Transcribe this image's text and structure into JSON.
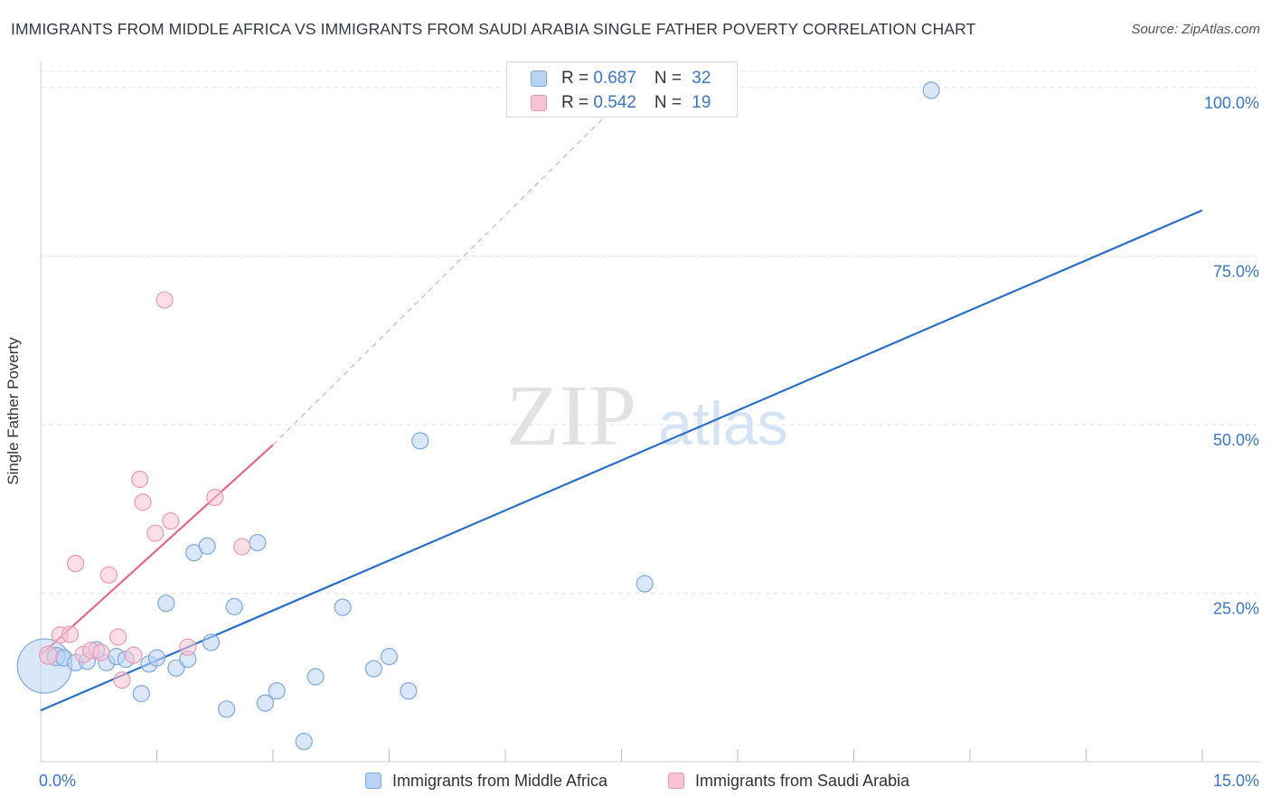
{
  "title": "IMMIGRANTS FROM MIDDLE AFRICA VS IMMIGRANTS FROM SAUDI ARABIA SINGLE FATHER POVERTY CORRELATION CHART",
  "source": "Source: ZipAtlas.com",
  "watermark": {
    "zip": "ZIP",
    "atlas": "atlas"
  },
  "legend": {
    "rows": [
      {
        "r_label": "R = ",
        "r_value": "0.687",
        "n_label": "N = ",
        "n_value": "32"
      },
      {
        "r_label": "R = ",
        "r_value": "0.542",
        "n_label": "N = ",
        "n_value": "19"
      }
    ]
  },
  "colors": {
    "blue_fill": "#b9d3f3",
    "blue_stroke": "#7ea9e0",
    "blue_line": "#2b6fcb",
    "pink_fill": "#f7c3d2",
    "pink_stroke": "#ea9ab4",
    "pink_line": "#e5668f",
    "grid": "#e3e3e3",
    "tick_label": "#3a76c8"
  },
  "chart_data": {
    "type": "scatter",
    "title": "IMMIGRANTS FROM MIDDLE AFRICA VS IMMIGRANTS FROM SAUDI ARABIA SINGLE FATHER POVERTY CORRELATION CHART",
    "xlabel": "",
    "ylabel": "Single Father Poverty",
    "xlim": [
      0,
      15
    ],
    "ylim": [
      0,
      102
    ],
    "x_tick_labels": [
      {
        "value": 0,
        "label": "0.0%"
      },
      {
        "value": 15,
        "label": "15.0%"
      }
    ],
    "x_minor_ticks": [
      1.5,
      3,
      4.5,
      6,
      7.5,
      9,
      10.5,
      12,
      13.5,
      15
    ],
    "y_ticks": [
      {
        "value": 25,
        "label": "25.0%"
      },
      {
        "value": 50,
        "label": "50.0%"
      },
      {
        "value": 75,
        "label": "75.0%"
      },
      {
        "value": 100,
        "label": "100.0%"
      }
    ],
    "series": [
      {
        "name": "Immigrants from Middle Africa",
        "color": "blue",
        "points": [
          [
            0.05,
            14.2,
            30
          ],
          [
            0.2,
            15.6,
            10
          ],
          [
            0.3,
            15.4,
            9
          ],
          [
            0.45,
            14.7,
            9
          ],
          [
            0.6,
            14.9,
            9
          ],
          [
            0.72,
            16.6,
            9
          ],
          [
            0.85,
            14.7,
            9
          ],
          [
            0.98,
            15.6,
            9
          ],
          [
            1.1,
            15.2,
            9
          ],
          [
            1.3,
            10.1,
            9
          ],
          [
            1.4,
            14.5,
            9
          ],
          [
            1.5,
            15.4,
            9
          ],
          [
            1.62,
            23.5,
            9
          ],
          [
            1.75,
            13.9,
            9
          ],
          [
            1.9,
            15.2,
            9
          ],
          [
            1.98,
            31.0,
            9
          ],
          [
            2.15,
            32.0,
            9
          ],
          [
            2.2,
            17.7,
            9
          ],
          [
            2.4,
            7.8,
            9
          ],
          [
            2.5,
            23.0,
            9
          ],
          [
            2.8,
            32.5,
            9
          ],
          [
            2.9,
            8.7,
            9
          ],
          [
            3.05,
            10.5,
            9
          ],
          [
            3.4,
            3.0,
            9
          ],
          [
            3.55,
            12.6,
            9
          ],
          [
            3.9,
            22.9,
            9
          ],
          [
            4.3,
            13.8,
            9
          ],
          [
            4.5,
            15.6,
            9
          ],
          [
            4.75,
            10.5,
            9
          ],
          [
            4.9,
            47.6,
            9
          ],
          [
            7.8,
            26.4,
            9
          ],
          [
            11.5,
            99.6,
            9
          ]
        ],
        "trend": {
          "x1": 0,
          "y1": 7.6,
          "x2": 15,
          "y2": 81.8
        }
      },
      {
        "name": "Immigrants from Saudi Arabia",
        "color": "pink",
        "points": [
          [
            0.1,
            15.8,
            10
          ],
          [
            0.25,
            18.8,
            9
          ],
          [
            0.38,
            18.9,
            9
          ],
          [
            0.45,
            29.4,
            9
          ],
          [
            0.55,
            15.9,
            9
          ],
          [
            0.65,
            16.5,
            9
          ],
          [
            0.78,
            16.2,
            9
          ],
          [
            0.88,
            27.7,
            9
          ],
          [
            1.0,
            18.5,
            9
          ],
          [
            1.05,
            12.1,
            9
          ],
          [
            1.2,
            15.8,
            9
          ],
          [
            1.28,
            41.9,
            9
          ],
          [
            1.32,
            38.5,
            9
          ],
          [
            1.48,
            33.9,
            9
          ],
          [
            1.6,
            68.5,
            9
          ],
          [
            1.68,
            35.7,
            9
          ],
          [
            1.9,
            17.0,
            9
          ],
          [
            2.25,
            39.2,
            9
          ],
          [
            2.6,
            31.9,
            9
          ]
        ],
        "trend": {
          "x1": 0,
          "y1": 15.8,
          "x2": 3.0,
          "y2": 47.0
        },
        "trend_extension": {
          "x1": 3.0,
          "y1": 47.0,
          "x2": 7.7,
          "y2": 100.4
        }
      }
    ]
  },
  "bottom_legend": {
    "items": [
      {
        "label": "Immigrants from Middle Africa"
      },
      {
        "label": "Immigrants from Saudi Arabia"
      }
    ]
  }
}
